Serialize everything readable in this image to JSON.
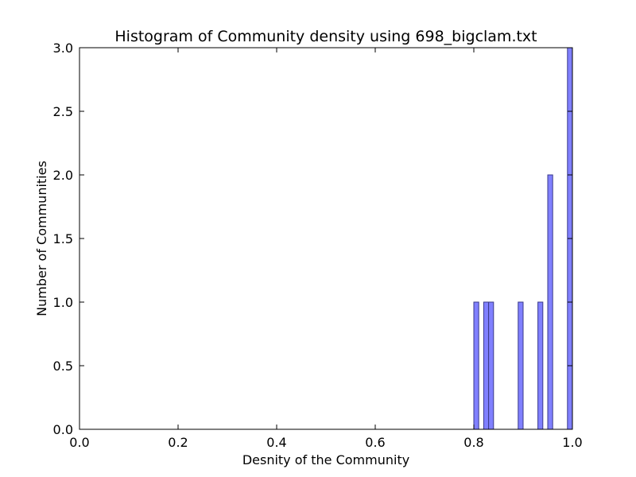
{
  "chart_data": {
    "type": "bar",
    "title": "Histogram of Community density using 698_bigclam.txt",
    "xlabel": "Desnity of the Community",
    "ylabel": "Number of Communities",
    "xlim": [
      0.0,
      1.0
    ],
    "ylim": [
      0.0,
      3.0
    ],
    "bin_width": 0.01,
    "bar_color": "#8080ff",
    "bar_edge_color": "#3a3a8a",
    "xticks": [
      {
        "value": 0.0,
        "label": "0.0"
      },
      {
        "value": 0.2,
        "label": "0.2"
      },
      {
        "value": 0.4,
        "label": "0.4"
      },
      {
        "value": 0.6,
        "label": "0.6"
      },
      {
        "value": 0.8,
        "label": "0.8"
      },
      {
        "value": 1.0,
        "label": "1.0"
      }
    ],
    "yticks": [
      {
        "value": 0.0,
        "label": "0.0"
      },
      {
        "value": 0.5,
        "label": "0.5"
      },
      {
        "value": 1.0,
        "label": "1.0"
      },
      {
        "value": 1.5,
        "label": "1.5"
      },
      {
        "value": 2.0,
        "label": "2.0"
      },
      {
        "value": 2.5,
        "label": "2.5"
      },
      {
        "value": 3.0,
        "label": "3.0"
      }
    ],
    "bins": [
      {
        "start": 0.8,
        "count": 1
      },
      {
        "start": 0.82,
        "count": 1
      },
      {
        "start": 0.83,
        "count": 1
      },
      {
        "start": 0.89,
        "count": 1
      },
      {
        "start": 0.93,
        "count": 1
      },
      {
        "start": 0.95,
        "count": 2
      },
      {
        "start": 0.99,
        "count": 3
      }
    ]
  }
}
